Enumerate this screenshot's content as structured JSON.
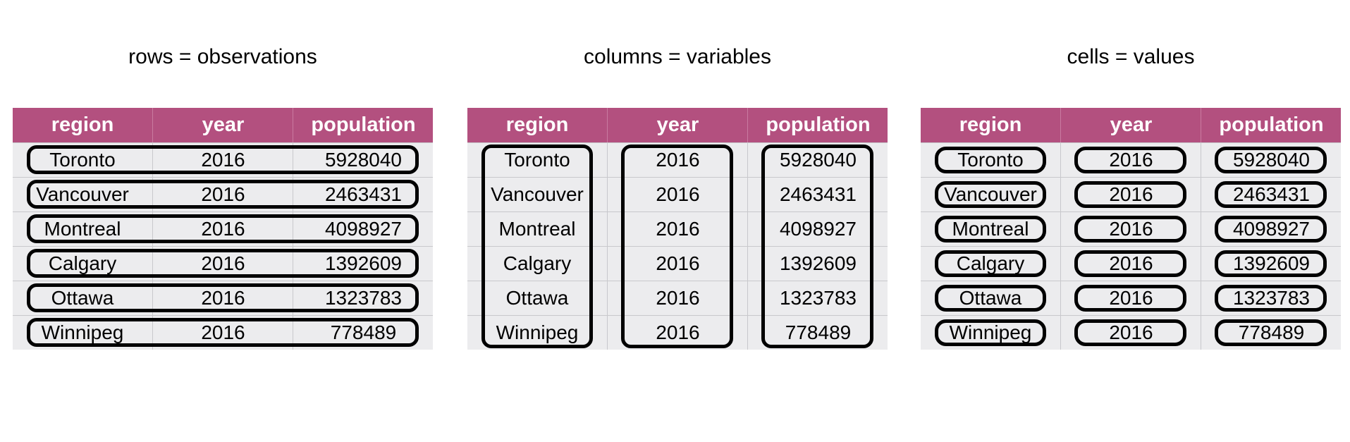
{
  "panels": [
    {
      "title": "rows = observations",
      "highlight": "rows"
    },
    {
      "title": "columns = variables",
      "highlight": "columns"
    },
    {
      "title": "cells = values",
      "highlight": "cells"
    }
  ],
  "table": {
    "columns": [
      "region",
      "year",
      "population"
    ],
    "rows": [
      [
        "Toronto",
        "2016",
        "5928040"
      ],
      [
        "Vancouver",
        "2016",
        "2463431"
      ],
      [
        "Montreal",
        "2016",
        "4098927"
      ],
      [
        "Calgary",
        "2016",
        "1392609"
      ],
      [
        "Ottawa",
        "2016",
        "1323783"
      ],
      [
        "Winnipeg",
        "2016",
        "778489"
      ]
    ]
  },
  "colors": {
    "header": "#b3507f",
    "row_background": "#ececee",
    "outline": "#000000"
  }
}
